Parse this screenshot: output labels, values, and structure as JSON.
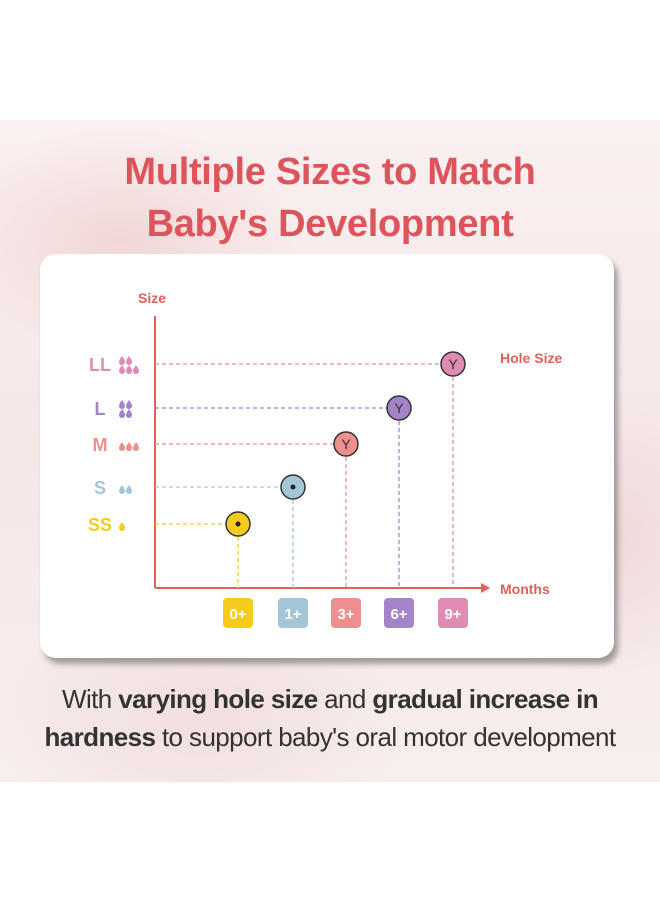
{
  "title": {
    "line1": "Multiple Sizes to Match",
    "line2": "Baby's Development"
  },
  "chart_data": {
    "type": "scatter",
    "ylabel": "Size",
    "xlabel": "Months",
    "legend_label": "Hole Size",
    "categories_x": [
      "0+",
      "1+",
      "3+",
      "6+",
      "9+"
    ],
    "categories_y": [
      "SS",
      "S",
      "M",
      "L",
      "LL"
    ],
    "points": [
      {
        "x": "0+",
        "y": "SS",
        "hole": "dot",
        "color": "#f5cc1c",
        "drops": 1
      },
      {
        "x": "1+",
        "y": "S",
        "hole": "dot",
        "color": "#a3c7d8",
        "drops": 2
      },
      {
        "x": "3+",
        "y": "M",
        "hole": "Y",
        "color": "#ef8e8e",
        "drops": 3
      },
      {
        "x": "6+",
        "y": "L",
        "hole": "Y",
        "color": "#a583c8",
        "drops": 4
      },
      {
        "x": "9+",
        "y": "LL",
        "hole": "Y",
        "color": "#e08bb4",
        "drops": 5
      }
    ],
    "axis_color": "#e0605a",
    "grid": "dashed guide lines"
  },
  "caption": {
    "line1_a": "With ",
    "line1_b": "varying hole size",
    "line1_c": " and ",
    "line1_d": "gradual increase in",
    "line2_a": "hardness",
    "line2_b": " to support baby's oral motor development"
  }
}
